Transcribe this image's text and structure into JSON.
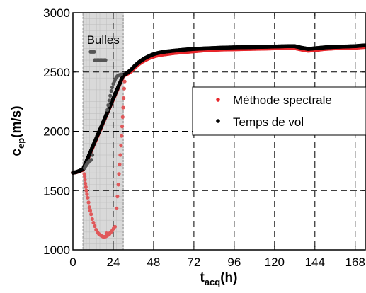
{
  "chart_data": {
    "type": "scatter",
    "x_axis": {
      "label_main": "t",
      "label_sub": "acq",
      "label_suffix": "(h)",
      "range": [
        0,
        174
      ],
      "ticks": [
        0,
        24,
        48,
        72,
        96,
        120,
        144,
        168
      ],
      "tick_labels": [
        "0",
        "24",
        "48",
        "72",
        "96",
        "120",
        "144",
        "168"
      ]
    },
    "y_axis": {
      "label_main": "c",
      "label_sub": "ep",
      "label_suffix": "(m/s)",
      "range": [
        1000,
        3000
      ],
      "ticks": [
        1000,
        1500,
        2000,
        2500,
        3000
      ],
      "tick_labels": [
        "1000",
        "1500",
        "2000",
        "2500",
        "3000"
      ]
    },
    "grid": true,
    "grid_style": "dashed",
    "legend_position": "right-middle",
    "annotation": {
      "text": "Bulles",
      "x_start": 6,
      "x_end": 30,
      "shaded_color": "#d9d9d9"
    },
    "series": [
      {
        "name": "Méthode spectrale",
        "color": "#e8262b",
        "bubble_color": "#e0585a",
        "clean_points": [
          [
            0,
            1650
          ],
          [
            2,
            1655
          ],
          [
            4,
            1665
          ],
          [
            6,
            1675
          ],
          [
            6.5,
            1690
          ],
          [
            30,
            2470
          ],
          [
            31,
            2475
          ],
          [
            33,
            2490
          ],
          [
            35,
            2510
          ],
          [
            37,
            2540
          ],
          [
            39,
            2565
          ],
          [
            41,
            2585
          ],
          [
            43,
            2600
          ],
          [
            45,
            2615
          ],
          [
            47,
            2625
          ],
          [
            49,
            2635
          ],
          [
            52,
            2645
          ],
          [
            55,
            2650
          ],
          [
            60,
            2660
          ],
          [
            66,
            2668
          ],
          [
            72,
            2675
          ],
          [
            80,
            2685
          ],
          [
            88,
            2690
          ],
          [
            96,
            2692
          ],
          [
            104,
            2695
          ],
          [
            112,
            2697
          ],
          [
            120,
            2700
          ],
          [
            128,
            2702
          ],
          [
            132,
            2702
          ],
          [
            136,
            2690
          ],
          [
            140,
            2680
          ],
          [
            144,
            2685
          ],
          [
            150,
            2695
          ],
          [
            156,
            2700
          ],
          [
            162,
            2702
          ],
          [
            168,
            2705
          ],
          [
            174,
            2712
          ]
        ],
        "bubble_points": [
          [
            6.8,
            1640
          ],
          [
            7,
            1620
          ],
          [
            7.2,
            1590
          ],
          [
            7.4,
            1560
          ],
          [
            7.7,
            1530
          ],
          [
            8,
            1500
          ],
          [
            8.4,
            1470
          ],
          [
            8.8,
            1440
          ],
          [
            9.3,
            1400
          ],
          [
            9.8,
            1360
          ],
          [
            10.3,
            1330
          ],
          [
            10.8,
            1300
          ],
          [
            11.5,
            1260
          ],
          [
            12.2,
            1230
          ],
          [
            13,
            1200
          ],
          [
            13.8,
            1170
          ],
          [
            14.6,
            1150
          ],
          [
            15.4,
            1135
          ],
          [
            16.2,
            1125
          ],
          [
            17,
            1118
          ],
          [
            17.8,
            1112
          ],
          [
            18.6,
            1110
          ],
          [
            19.4,
            1112
          ],
          [
            20.2,
            1118
          ],
          [
            21,
            1125
          ],
          [
            21.8,
            1135
          ],
          [
            22.6,
            1148
          ],
          [
            23.4,
            1162
          ],
          [
            24.2,
            1180
          ],
          [
            20,
            1140
          ],
          [
            22,
            1142
          ],
          [
            25,
            1195
          ],
          [
            26,
            1350
          ],
          [
            26.5,
            1450
          ],
          [
            27,
            1550
          ],
          [
            27.4,
            1640
          ],
          [
            27.8,
            1720
          ],
          [
            28.2,
            1800
          ],
          [
            28.6,
            1880
          ],
          [
            29,
            1960
          ],
          [
            29.3,
            2040
          ],
          [
            29.6,
            2120
          ],
          [
            29.9,
            2200
          ],
          [
            30.2,
            2280
          ],
          [
            30.5,
            2360
          ],
          [
            30.8,
            2420
          ]
        ]
      },
      {
        "name": "Temps de vol",
        "color": "#000000",
        "bubble_color": "#555555",
        "clean_points": [
          [
            0,
            1650
          ],
          [
            2,
            1656
          ],
          [
            4,
            1667
          ],
          [
            6,
            1680
          ],
          [
            30,
            2475
          ],
          [
            31,
            2480
          ],
          [
            33,
            2500
          ],
          [
            35,
            2525
          ],
          [
            37,
            2555
          ],
          [
            39,
            2580
          ],
          [
            41,
            2600
          ],
          [
            43,
            2618
          ],
          [
            45,
            2632
          ],
          [
            47,
            2645
          ],
          [
            49,
            2655
          ],
          [
            52,
            2665
          ],
          [
            55,
            2672
          ],
          [
            60,
            2680
          ],
          [
            66,
            2688
          ],
          [
            72,
            2695
          ],
          [
            80,
            2700
          ],
          [
            88,
            2705
          ],
          [
            96,
            2708
          ],
          [
            104,
            2710
          ],
          [
            112,
            2712
          ],
          [
            120,
            2715
          ],
          [
            128,
            2718
          ],
          [
            132,
            2718
          ],
          [
            136,
            2705
          ],
          [
            140,
            2695
          ],
          [
            144,
            2700
          ],
          [
            150,
            2708
          ],
          [
            156,
            2712
          ],
          [
            162,
            2715
          ],
          [
            168,
            2718
          ],
          [
            174,
            2725
          ]
        ],
        "bubble_points": [
          [
            7,
            1690
          ],
          [
            7.5,
            1705
          ],
          [
            8,
            1715
          ],
          [
            8.5,
            1725
          ],
          [
            9,
            1735
          ],
          [
            9.5,
            1745
          ],
          [
            10,
            1750
          ],
          [
            10.5,
            1755
          ],
          [
            11,
            1760
          ],
          [
            11.6,
            1800
          ],
          [
            10.5,
            2670
          ],
          [
            11.2,
            2670
          ],
          [
            11.9,
            2670
          ],
          [
            12.6,
            2670
          ],
          [
            13,
            2600
          ],
          [
            13.8,
            2600
          ],
          [
            14.6,
            2600
          ],
          [
            15.4,
            2600
          ],
          [
            16.2,
            2600
          ],
          [
            17,
            2600
          ],
          [
            17.8,
            2600
          ],
          [
            18.6,
            2600
          ],
          [
            19.4,
            2600
          ],
          [
            20.5,
            2180
          ],
          [
            21,
            2220
          ],
          [
            21.6,
            2260
          ],
          [
            22.2,
            2300
          ],
          [
            22.8,
            2340
          ],
          [
            23.4,
            2370
          ],
          [
            24,
            2400
          ],
          [
            24.6,
            2420
          ],
          [
            25.2,
            2440
          ],
          [
            25.8,
            2455
          ],
          [
            26.4,
            2465
          ],
          [
            27,
            2470
          ],
          [
            27.6,
            2475
          ],
          [
            28.2,
            2478
          ],
          [
            28.8,
            2480
          ]
        ]
      }
    ]
  }
}
